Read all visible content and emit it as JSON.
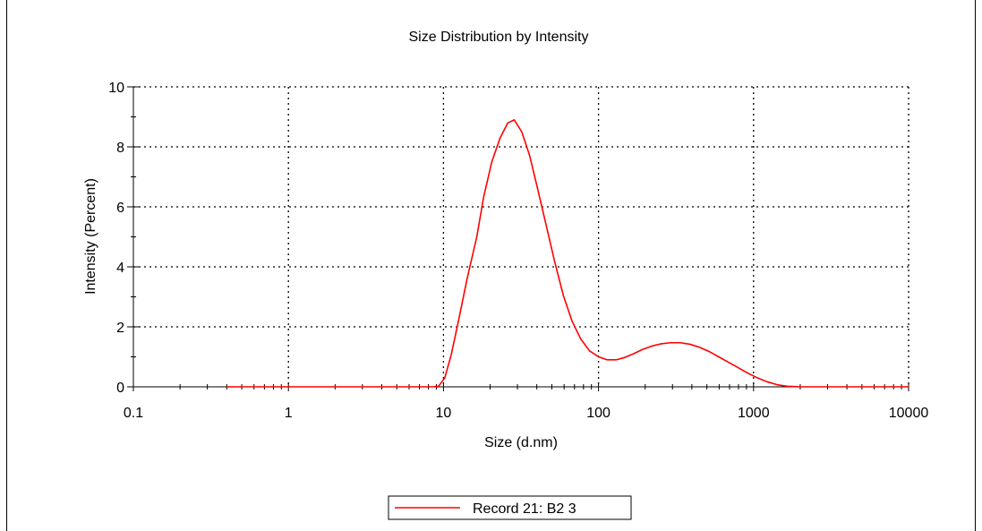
{
  "chart_data": {
    "type": "line",
    "title": "Size Distribution by Intensity",
    "xlabel": "Size (d.nm)",
    "ylabel": "Intensity (Percent)",
    "xscale": "log",
    "xlim": [
      0.1,
      10000
    ],
    "ylim": [
      0,
      10
    ],
    "x_ticks": [
      "0.1",
      "1",
      "10",
      "100",
      "1000",
      "10000"
    ],
    "y_ticks": [
      "0",
      "2",
      "4",
      "6",
      "8",
      "10"
    ],
    "grid": true,
    "legend_placement": "bottom-center",
    "colors": {
      "series": "#ff0000",
      "axis": "#000000",
      "grid": "#000000"
    },
    "series": [
      {
        "name": "Record 21: B2 3",
        "x": [
          0.4,
          0.8,
          1.5,
          3,
          5,
          7,
          8.5,
          9.3,
          10.2,
          11.2,
          12.5,
          14.2,
          16.4,
          18.2,
          20.5,
          23.2,
          26.0,
          28.6,
          32.0,
          36.0,
          40.5,
          45.9,
          52.0,
          59.3,
          67.4,
          76.7,
          87.5,
          100.0,
          113.9,
          130.0,
          148.0,
          168.0,
          193.0,
          221.0,
          251.0,
          290.0,
          337.0,
          389.0,
          447.0,
          516.0,
          596.0,
          689.0,
          795.0,
          922.0,
          1060.0,
          1220.0,
          1420.0,
          1640.0,
          2000.0,
          3000.0,
          5000.0,
          10000.0
        ],
        "y": [
          0,
          0,
          0,
          0,
          0,
          0,
          0,
          0.02,
          0.3,
          1.05,
          2.2,
          3.6,
          5.0,
          6.35,
          7.5,
          8.3,
          8.8,
          8.9,
          8.5,
          7.7,
          6.6,
          5.4,
          4.2,
          3.05,
          2.2,
          1.6,
          1.2,
          1.0,
          0.9,
          0.9,
          0.98,
          1.1,
          1.25,
          1.36,
          1.43,
          1.47,
          1.47,
          1.42,
          1.32,
          1.18,
          1.0,
          0.82,
          0.64,
          0.45,
          0.3,
          0.17,
          0.07,
          0.02,
          0,
          0,
          0,
          0
        ]
      }
    ]
  }
}
